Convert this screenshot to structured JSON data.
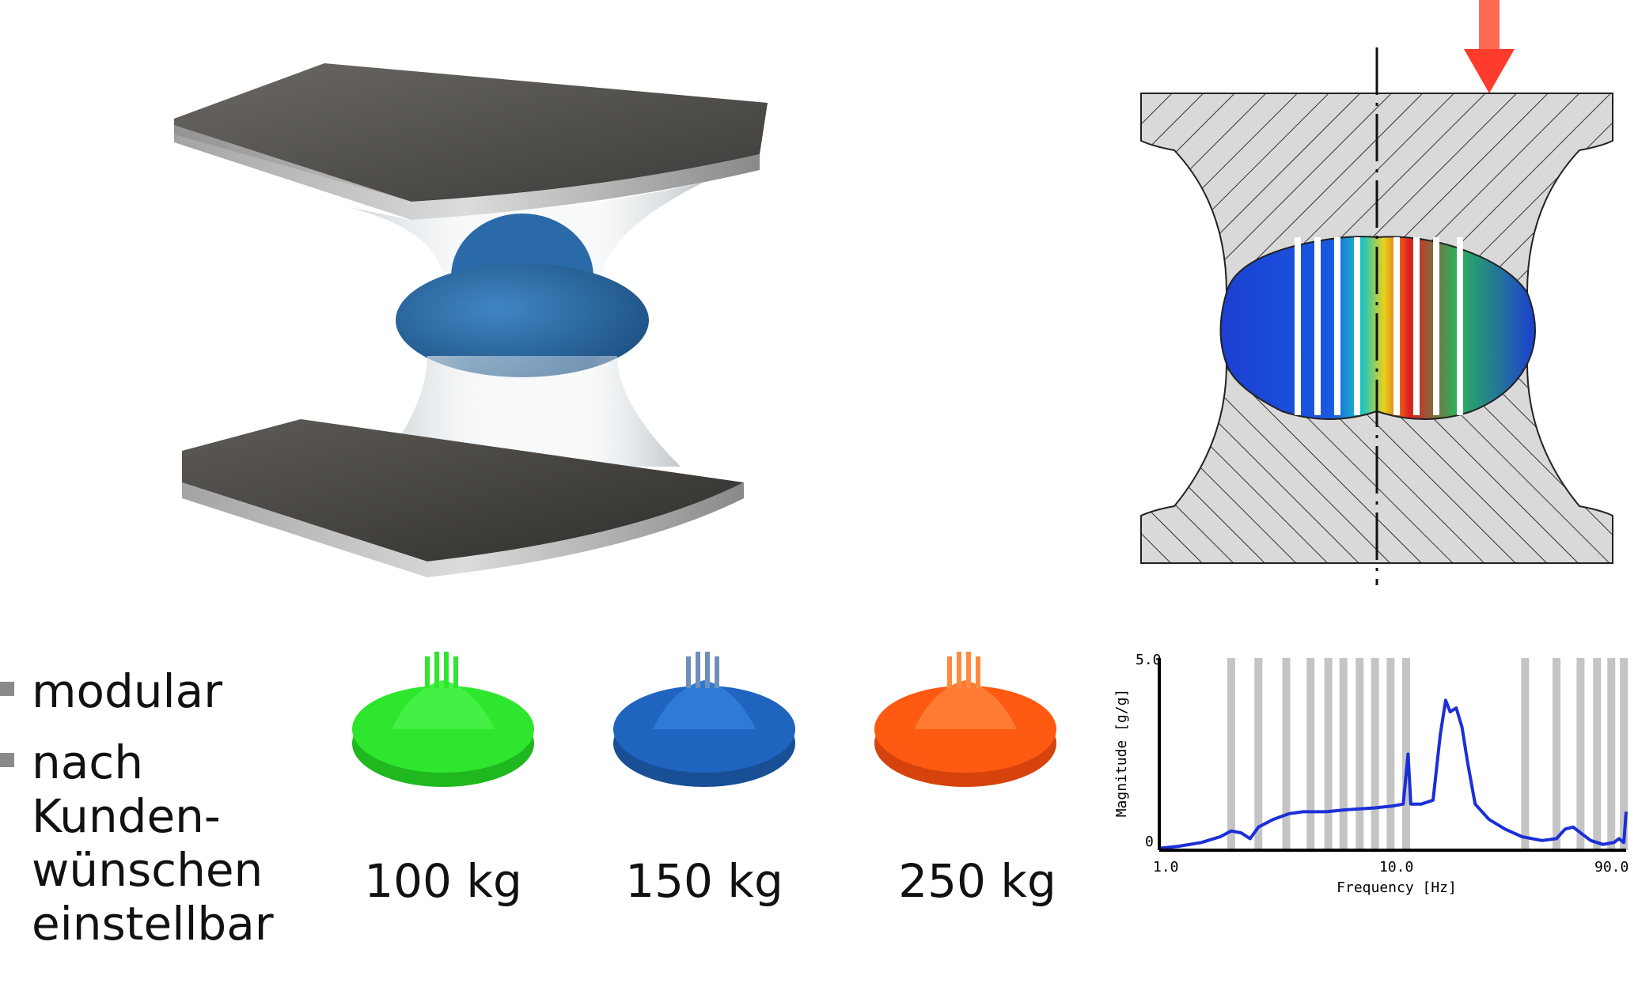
{
  "bullets": [
    {
      "text": "modular"
    },
    {
      "text": "nach\nKunden-\nwünschen\neinstellbar"
    }
  ],
  "variants": [
    {
      "label": "100 kg",
      "color": "#2ecf2e"
    },
    {
      "label": "150 kg",
      "color": "#1f65c0"
    },
    {
      "label": "250 kg",
      "color": "#ff5a12"
    }
  ],
  "colors": {
    "hatch_fill": "#d9d9d9",
    "arrow": "#ff3b2b",
    "foam_blue": "#2a66a6",
    "plate_dark": "#4c4a48"
  },
  "chart_data": {
    "type": "line",
    "title": "",
    "xlabel": "Frequency [Hz]",
    "ylabel": "Magnitude [g/g]",
    "xscale": "log",
    "xlim": [
      1.0,
      90.0
    ],
    "ylim": [
      0,
      5.0
    ],
    "xticks": [
      "1.0",
      "10.0",
      "90.0"
    ],
    "yticks": [
      "0",
      "5.0"
    ],
    "vertical_bands_x": [
      2.0,
      2.6,
      3.4,
      4.3,
      5.1,
      5.9,
      6.9,
      8.0,
      9.3,
      10.8,
      34,
      46,
      58,
      68,
      78,
      88
    ],
    "series": [
      {
        "color": "#1a2fd6",
        "points": [
          [
            1.0,
            0.05
          ],
          [
            1.2,
            0.1
          ],
          [
            1.5,
            0.2
          ],
          [
            1.8,
            0.35
          ],
          [
            2.0,
            0.5
          ],
          [
            2.2,
            0.45
          ],
          [
            2.4,
            0.3
          ],
          [
            2.6,
            0.6
          ],
          [
            3.0,
            0.8
          ],
          [
            3.5,
            0.95
          ],
          [
            4.0,
            1.0
          ],
          [
            5.0,
            1.0
          ],
          [
            6.0,
            1.05
          ],
          [
            8.0,
            1.1
          ],
          [
            9.5,
            1.15
          ],
          [
            10.5,
            1.2
          ],
          [
            11.0,
            2.5
          ],
          [
            11.3,
            1.2
          ],
          [
            12.5,
            1.2
          ],
          [
            14.0,
            1.3
          ],
          [
            15.0,
            3.0
          ],
          [
            15.8,
            3.9
          ],
          [
            16.5,
            3.6
          ],
          [
            17.5,
            3.7
          ],
          [
            18.5,
            3.2
          ],
          [
            19.5,
            2.3
          ],
          [
            21.0,
            1.2
          ],
          [
            24.0,
            0.8
          ],
          [
            28.0,
            0.55
          ],
          [
            33.0,
            0.35
          ],
          [
            40.0,
            0.25
          ],
          [
            46.0,
            0.3
          ],
          [
            50.0,
            0.55
          ],
          [
            54.0,
            0.6
          ],
          [
            58.0,
            0.45
          ],
          [
            64.0,
            0.25
          ],
          [
            72.0,
            0.15
          ],
          [
            80.0,
            0.2
          ],
          [
            84.0,
            0.3
          ],
          [
            88.0,
            0.2
          ],
          [
            90.0,
            1.0
          ]
        ]
      }
    ]
  }
}
